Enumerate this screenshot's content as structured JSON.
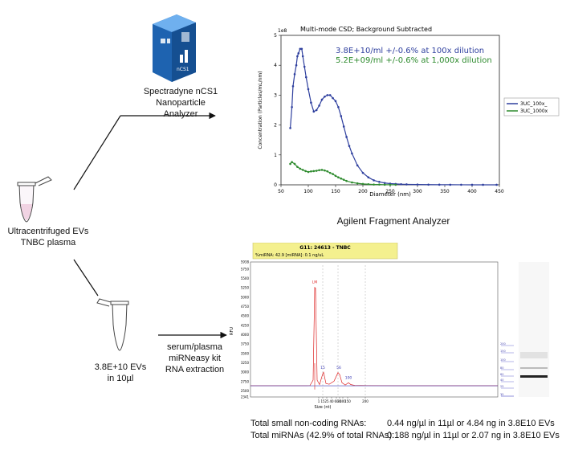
{
  "labels": {
    "instrument_1": "Spectradyne nCS1 Nanoparticle",
    "instrument_2": "Analyzer",
    "sample_1": "Ultracentrifuged EVs",
    "sample_2": "TNBC plasma",
    "ev_1": "3.8E+10 EVs",
    "ev_2": "in 10µl",
    "kit_1": "serum/plasma",
    "kit_2": "miRNeasy kit",
    "kit_3": "RNA extraction",
    "fragment_analyzer": "Agilent Fragment Analyzer",
    "device_logo": "nCS1"
  },
  "csd_chart": {
    "title": "Multi-mode CSD; Background Subtracted",
    "xlabel": "Diameter (nm)",
    "ylabel": "Concentration (Particles/mL/nm)",
    "exponent": "1e8",
    "annotation_1": "3.8E+10/ml +/-0.6% at 100x dilution",
    "annotation_2": "5.2E+09/ml +/-0.6% at 1,000x dilution",
    "legend_1": "3UC_100x_",
    "legend_2": "3UC_1000x",
    "colors": {
      "s1": "#2e3f9e",
      "s2": "#2e8b2e"
    }
  },
  "fa_chart": {
    "header_title": "G11: 24613 - TNBC",
    "header_sub": "%miRNA: 42.9     [miRNA]: 0.1 ng/uL",
    "ylabel": "RFU",
    "xlabel": "Size (nt)",
    "peak_label": "LM"
  },
  "results": {
    "row1_label": "Total small non-coding RNAs:",
    "row1_value": "0.44 ng/µl   in 11µl or 4.84 ng in 3.8E10 EVs",
    "row2_label": "Total miRNAs (42.9% of total RNAs):",
    "row2_value": "0.188 ng/µl  in 11µl or 2.07 ng in 3.8E10 EVs"
  },
  "chart_data": [
    {
      "type": "scatter",
      "title": "Multi-mode CSD; Background Subtracted",
      "xlabel": "Diameter (nm)",
      "ylabel": "Concentration (Particles/mL/nm)",
      "xlim": [
        50,
        450
      ],
      "ylim": [
        0,
        500000000.0
      ],
      "xticks": [
        50,
        100,
        150,
        200,
        250,
        300,
        350,
        400,
        450
      ],
      "yticks": [
        0,
        1,
        2,
        3,
        4,
        5
      ],
      "y_scale_label": "1e8",
      "legend_position": "right",
      "series": [
        {
          "name": "3UC_100x_",
          "x": [
            67,
            70,
            72,
            75,
            78,
            80,
            82,
            85,
            88,
            90,
            93,
            96,
            100,
            105,
            110,
            115,
            120,
            125,
            130,
            135,
            140,
            145,
            150,
            155,
            160,
            165,
            170,
            175,
            180,
            190,
            200,
            210,
            220,
            230,
            240,
            250,
            260,
            270,
            280,
            300,
            320,
            340,
            360,
            380,
            400,
            420,
            445
          ],
          "y": [
            190000000.0,
            260000000.0,
            330000000.0,
            370000000.0,
            400000000.0,
            430000000.0,
            440000000.0,
            455000000.0,
            455000000.0,
            430000000.0,
            395000000.0,
            360000000.0,
            320000000.0,
            275000000.0,
            245000000.0,
            250000000.0,
            265000000.0,
            285000000.0,
            295000000.0,
            300000000.0,
            300000000.0,
            290000000.0,
            280000000.0,
            260000000.0,
            230000000.0,
            195000000.0,
            160000000.0,
            130000000.0,
            105000000.0,
            65000000.0,
            40000000.0,
            25000000.0,
            15000000.0,
            10000000.0,
            6000000.0,
            4000000.0,
            3000000.0,
            2000000.0,
            1500000.0,
            1000000.0,
            600000.0,
            400000.0,
            300000.0,
            200000.0,
            100000.0,
            100000.0,
            100000.0
          ]
        },
        {
          "name": "3UC_1000x",
          "x": [
            67,
            70,
            75,
            80,
            85,
            90,
            95,
            100,
            105,
            110,
            115,
            120,
            125,
            130,
            135,
            140,
            145,
            150,
            155,
            160,
            165,
            170,
            180,
            190,
            200,
            210,
            220,
            230,
            240,
            250,
            260
          ],
          "y": [
            70000000.0,
            76000000.0,
            70000000.0,
            60000000.0,
            54000000.0,
            50000000.0,
            46000000.0,
            43000000.0,
            45000000.0,
            46000000.0,
            47000000.0,
            49000000.0,
            50000000.0,
            48000000.0,
            45000000.0,
            40000000.0,
            36000000.0,
            30000000.0,
            25000000.0,
            21000000.0,
            17000000.0,
            13000000.0,
            8000000.0,
            5000000.0,
            3000000.0,
            2000000.0,
            1000000.0,
            1000000.0,
            500000.0,
            300000.0,
            200000.0
          ]
        }
      ]
    },
    {
      "type": "line",
      "title": "G11: 24613 - TNBC",
      "xlabel": "Size (nt)",
      "ylabel": "RFU",
      "ylim": [
        2341,
        5938
      ],
      "yticks": [
        2341,
        2500,
        2750,
        3000,
        3250,
        3500,
        3750,
        4000,
        4250,
        4500,
        4750,
        5000,
        5250,
        5500,
        5750,
        5938
      ],
      "xticks": [
        "1",
        "15",
        "25",
        "40",
        "60",
        "80",
        "100",
        "150",
        "200"
      ],
      "peak_labels": [
        "LM",
        "15",
        "56",
        "100"
      ],
      "ladder_labels": [
        "200",
        "150",
        "100",
        "80",
        "60",
        "40",
        "25",
        "15",
        "1"
      ]
    }
  ]
}
